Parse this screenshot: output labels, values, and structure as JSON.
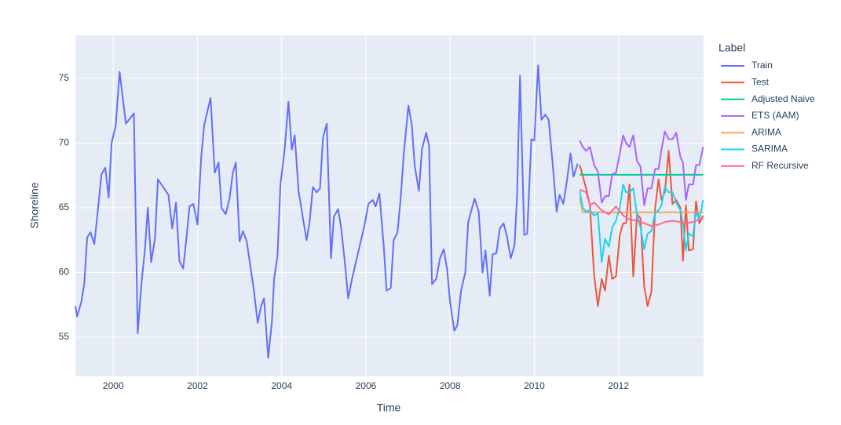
{
  "chart_data": {
    "type": "line",
    "x_label": "Time",
    "y_label": "Shoreline",
    "legend_title": "Label",
    "xlim": [
      1999.1,
      2014.02
    ],
    "ylim": [
      51.97,
      78.33
    ],
    "xticks": [
      2000,
      2002,
      2004,
      2006,
      2008,
      2010,
      2012
    ],
    "yticks": [
      55,
      60,
      65,
      70,
      75
    ],
    "grid": true,
    "legend_position": "right",
    "series": [
      {
        "name": "Train",
        "color": "#636efa",
        "x": [
          1999.1,
          1999.14,
          1999.24,
          1999.31,
          1999.38,
          1999.46,
          1999.55,
          1999.63,
          1999.72,
          1999.81,
          1999.89,
          1999.96,
          2000.06,
          2000.15,
          2000.3,
          2000.49,
          2000.58,
          2000.67,
          2000.75,
          2000.82,
          2000.9,
          2000.99,
          2001.06,
          2001.31,
          2001.4,
          2001.49,
          2001.57,
          2001.66,
          2001.74,
          2001.81,
          2001.9,
          2002.0,
          2002.09,
          2002.16,
          2002.31,
          2002.41,
          2002.5,
          2002.57,
          2002.67,
          2002.76,
          2002.84,
          2002.91,
          2003.0,
          2003.08,
          2003.17,
          2003.34,
          2003.43,
          2003.51,
          2003.58,
          2003.68,
          2003.77,
          2003.82,
          2003.9,
          2003.97,
          2004.07,
          2004.16,
          2004.24,
          2004.31,
          2004.4,
          2004.59,
          2004.66,
          2004.74,
          2004.83,
          2004.91,
          2004.98,
          2005.07,
          2005.17,
          2005.24,
          2005.34,
          2005.41,
          2005.49,
          2005.58,
          2005.67,
          2005.97,
          2006.06,
          2006.16,
          2006.23,
          2006.32,
          2006.42,
          2006.49,
          2006.59,
          2006.66,
          2006.75,
          2006.83,
          2006.9,
          2007.01,
          2007.09,
          2007.16,
          2007.26,
          2007.33,
          2007.43,
          2007.5,
          2007.57,
          2007.67,
          2007.76,
          2007.85,
          2007.93,
          2008.0,
          2008.1,
          2008.17,
          2008.26,
          2008.36,
          2008.43,
          2008.58,
          2008.68,
          2008.77,
          2008.84,
          2008.94,
          2009.01,
          2009.1,
          2009.18,
          2009.27,
          2009.35,
          2009.44,
          2009.53,
          2009.59,
          2009.66,
          2009.76,
          2009.83,
          2009.93,
          2010.0,
          2010.09,
          2010.17,
          2010.26,
          2010.34,
          2010.43,
          2010.53,
          2010.6,
          2010.69,
          2010.77,
          2010.86,
          2010.93,
          2011.03
        ],
        "values": [
          57.4,
          56.6,
          57.7,
          59.1,
          62.7,
          63.1,
          62.2,
          64.7,
          67.6,
          68.1,
          65.8,
          70.0,
          71.4,
          75.5,
          71.5,
          72.3,
          55.3,
          59.2,
          61.7,
          65.0,
          60.8,
          62.6,
          67.2,
          66.0,
          63.4,
          65.4,
          60.9,
          60.3,
          62.7,
          65.1,
          65.3,
          63.7,
          69.0,
          71.4,
          73.5,
          67.7,
          68.5,
          65.0,
          64.5,
          65.7,
          67.7,
          68.5,
          62.4,
          63.2,
          62.4,
          58.6,
          56.1,
          57.4,
          58.0,
          53.4,
          56.3,
          59.5,
          61.3,
          66.8,
          69.5,
          73.2,
          69.5,
          70.6,
          66.3,
          62.5,
          63.8,
          66.6,
          66.2,
          66.5,
          70.4,
          71.5,
          61.1,
          64.3,
          64.9,
          63.5,
          61.1,
          58.0,
          59.5,
          63.7,
          65.3,
          65.6,
          65.1,
          66.1,
          62.2,
          58.6,
          58.8,
          62.5,
          63.1,
          65.9,
          69.2,
          72.9,
          71.4,
          68.2,
          66.3,
          69.5,
          70.8,
          69.8,
          59.1,
          59.5,
          61.1,
          61.8,
          60.2,
          57.7,
          55.5,
          55.9,
          58.6,
          60.0,
          63.9,
          65.7,
          64.7,
          60.0,
          61.7,
          58.2,
          61.4,
          61.5,
          63.4,
          63.8,
          62.8,
          61.1,
          62.1,
          65.9,
          75.2,
          62.9,
          63.0,
          70.3,
          70.2,
          76.0,
          71.8,
          72.2,
          71.8,
          68.6,
          64.7,
          66.0,
          65.3,
          67.0,
          69.2,
          67.4,
          68.4
        ]
      },
      {
        "name": "Test",
        "color": "#EF553B",
        "x": [
          2011.08,
          2011.23,
          2011.32,
          2011.42,
          2011.51,
          2011.6,
          2011.68,
          2011.77,
          2011.85,
          2011.94,
          2012.03,
          2012.11,
          2012.18,
          2012.26,
          2012.35,
          2012.44,
          2012.52,
          2012.61,
          2012.69,
          2012.78,
          2012.87,
          2012.95,
          2013.02,
          2013.1,
          2013.19,
          2013.28,
          2013.37,
          2013.47,
          2013.53,
          2013.6,
          2013.67,
          2013.77,
          2013.84,
          2013.92,
          2014.01
        ],
        "values": [
          68.3,
          66.5,
          65.2,
          59.8,
          57.4,
          59.5,
          58.6,
          61.3,
          59.5,
          59.7,
          62.9,
          63.8,
          63.8,
          66.8,
          59.7,
          64.5,
          64.2,
          58.9,
          57.4,
          58.5,
          65.0,
          67.2,
          65.6,
          66.2,
          69.4,
          65.3,
          65.6,
          65.0,
          60.9,
          65.2,
          61.7,
          61.8,
          65.5,
          63.8,
          64.4
        ]
      },
      {
        "name": "Adjusted Naive",
        "color": "#00cc96",
        "x": [
          2011.08,
          2014.01
        ],
        "values": [
          67.55,
          67.55
        ]
      },
      {
        "name": "ETS (AAM)",
        "color": "#ab63fa",
        "x": [
          2011.08,
          2011.15,
          2011.23,
          2011.32,
          2011.42,
          2011.51,
          2011.6,
          2011.68,
          2011.77,
          2011.85,
          2011.94,
          2012.03,
          2012.11,
          2012.18,
          2012.26,
          2012.35,
          2012.44,
          2012.52,
          2012.61,
          2012.69,
          2012.78,
          2012.87,
          2012.95,
          2013.02,
          2013.1,
          2013.19,
          2013.28,
          2013.37,
          2013.47,
          2013.53,
          2013.6,
          2013.67,
          2013.77,
          2013.84,
          2013.92,
          2014.01
        ],
        "values": [
          70.2,
          69.7,
          69.4,
          69.7,
          68.3,
          67.8,
          65.4,
          65.9,
          65.9,
          67.6,
          67.7,
          69.2,
          70.6,
          70.0,
          69.7,
          70.6,
          68.6,
          68.2,
          65.2,
          66.5,
          66.5,
          68.0,
          68.0,
          69.5,
          70.9,
          70.3,
          70.3,
          70.8,
          68.9,
          68.5,
          65.6,
          66.8,
          66.8,
          68.3,
          68.3,
          69.7
        ]
      },
      {
        "name": "ARIMA",
        "color": "#FFA15A",
        "x": [
          2011.08,
          2011.15,
          2014.01
        ],
        "values": [
          65.8,
          64.65,
          64.65
        ]
      },
      {
        "name": "SARIMA",
        "color": "#19d3f3",
        "x": [
          2011.08,
          2011.15,
          2011.23,
          2011.32,
          2011.42,
          2011.51,
          2011.6,
          2011.68,
          2011.77,
          2011.85,
          2011.94,
          2012.03,
          2012.11,
          2012.18,
          2012.26,
          2012.35,
          2012.44,
          2012.52,
          2012.61,
          2012.69,
          2012.78,
          2012.87,
          2012.95,
          2013.02,
          2013.1,
          2013.19,
          2013.28,
          2013.37,
          2013.47,
          2013.53,
          2013.6,
          2013.67,
          2013.77,
          2013.84,
          2013.92,
          2014.01
        ],
        "values": [
          66.3,
          65.0,
          64.7,
          64.8,
          64.4,
          64.6,
          60.8,
          62.6,
          62.0,
          63.5,
          64.0,
          65.0,
          66.8,
          66.2,
          66.2,
          66.5,
          64.4,
          63.5,
          61.8,
          63.0,
          63.2,
          64.6,
          64.8,
          65.2,
          66.6,
          66.2,
          66.2,
          65.4,
          64.8,
          63.8,
          61.7,
          63.0,
          62.8,
          64.7,
          64.1,
          65.6
        ]
      },
      {
        "name": "RF Recursive",
        "color": "#FF6692",
        "x": [
          2011.08,
          2011.23,
          2011.32,
          2011.42,
          2011.6,
          2011.77,
          2011.94,
          2012.11,
          2012.26,
          2012.44,
          2012.61,
          2012.78,
          2012.95,
          2013.1,
          2013.28,
          2013.47,
          2013.6,
          2013.77,
          2013.92,
          2014.01
        ],
        "values": [
          66.4,
          66.2,
          65.2,
          65.4,
          64.8,
          64.5,
          65.1,
          64.4,
          64.1,
          64.0,
          63.8,
          63.6,
          63.7,
          63.9,
          64.0,
          63.9,
          63.8,
          63.9,
          64.1,
          64.2
        ]
      }
    ]
  }
}
